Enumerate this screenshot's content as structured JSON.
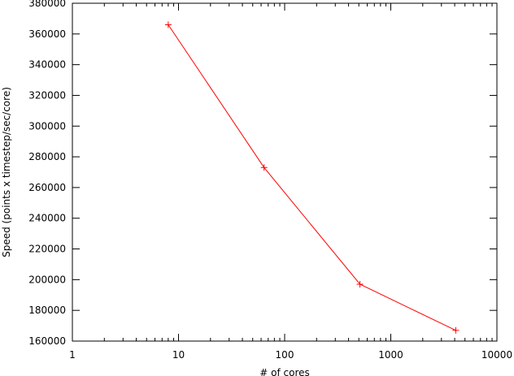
{
  "chart_data": {
    "type": "line",
    "title": "",
    "xlabel": "# of cores",
    "ylabel": "Speed (points x timestep/sec/core)",
    "x_scale": "log",
    "xlim": [
      1,
      10000
    ],
    "ylim": [
      160000,
      380000
    ],
    "x_ticks": [
      1,
      10,
      100,
      1000,
      10000
    ],
    "x_tick_labels": [
      "1",
      "10",
      "100",
      "1000",
      "10000"
    ],
    "y_ticks": [
      160000,
      180000,
      200000,
      220000,
      240000,
      260000,
      280000,
      300000,
      320000,
      340000,
      360000,
      380000
    ],
    "y_tick_labels": [
      "160000",
      "180000",
      "200000",
      "220000",
      "240000",
      "260000",
      "280000",
      "300000",
      "320000",
      "340000",
      "360000",
      "380000"
    ],
    "grid": false,
    "legend": "none",
    "series": [
      {
        "color": "#ff0000",
        "marker": "plus",
        "x": [
          8,
          64,
          512,
          4096
        ],
        "y": [
          366000,
          273000,
          197000,
          167000
        ]
      }
    ]
  }
}
